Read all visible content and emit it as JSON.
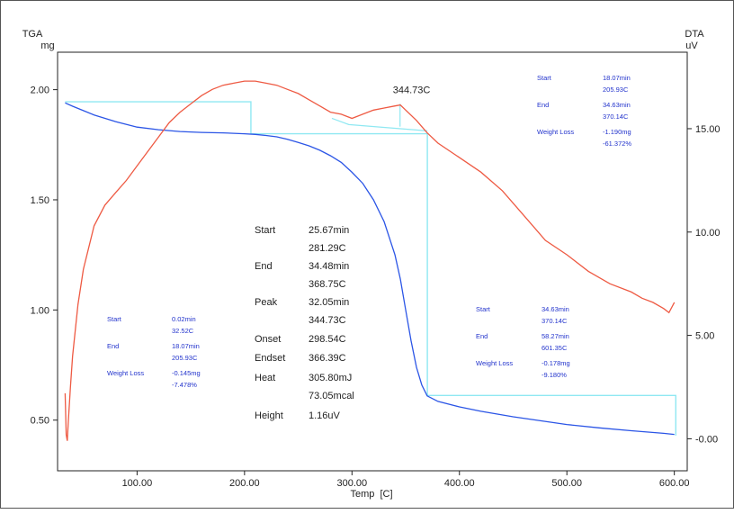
{
  "chart_data": {
    "type": "line",
    "xlabel": "Temp  [C]",
    "ylabel_left": "TGA",
    "ylabel_left_unit": "mg",
    "ylabel_right": "DTA",
    "ylabel_right_unit": "uV",
    "x_ticks": [
      "100.00",
      "200.00",
      "300.00",
      "400.00",
      "500.00",
      "600.00"
    ],
    "y_left_ticks": [
      "0.50",
      "1.00",
      "1.50",
      "2.00"
    ],
    "y_right_ticks": [
      "-0.00",
      "5.00",
      "10.00",
      "15.00"
    ],
    "xlim": [
      26,
      612
    ],
    "ylim_left": [
      0.27,
      2.17
    ],
    "ylim_right": [
      -1.55,
      18.7
    ],
    "grid": false,
    "colors": {
      "tga": "#2b55e6",
      "dta": "#ee5a43",
      "step": "#8fe8f2",
      "annotation": "#2233cc",
      "text": "#222222"
    },
    "series": [
      {
        "key": "tga",
        "axis": "left",
        "x": [
          33,
          40,
          50,
          60,
          80,
          100,
          120,
          140,
          160,
          180,
          200,
          210,
          220,
          230,
          240,
          250,
          260,
          270,
          280,
          290,
          300,
          310,
          320,
          330,
          340,
          345,
          350,
          355,
          360,
          365,
          370,
          380,
          400,
          420,
          450,
          500,
          530,
          560,
          590,
          600
        ],
        "y": [
          1.94,
          1.925,
          1.905,
          1.885,
          1.855,
          1.83,
          1.818,
          1.81,
          1.806,
          1.804,
          1.8,
          1.797,
          1.792,
          1.786,
          1.775,
          1.76,
          1.745,
          1.725,
          1.7,
          1.67,
          1.625,
          1.575,
          1.5,
          1.4,
          1.25,
          1.14,
          1.0,
          0.86,
          0.74,
          0.66,
          0.61,
          0.585,
          0.56,
          0.54,
          0.515,
          0.48,
          0.465,
          0.452,
          0.44,
          0.435
        ]
      },
      {
        "key": "dta",
        "axis": "right",
        "x": [
          33,
          34,
          35,
          36,
          38,
          40,
          45,
          50,
          60,
          70,
          80,
          90,
          100,
          110,
          120,
          130,
          140,
          150,
          160,
          170,
          180,
          190,
          200,
          210,
          220,
          230,
          240,
          250,
          260,
          270,
          280,
          290,
          300,
          310,
          320,
          330,
          340,
          345,
          350,
          360,
          370,
          380,
          400,
          420,
          440,
          460,
          480,
          500,
          520,
          540,
          560,
          570,
          580,
          590,
          595,
          600
        ],
        "y": [
          2.2,
          0.2,
          -0.1,
          0.8,
          2.5,
          4.0,
          6.5,
          8.2,
          10.3,
          11.3,
          11.9,
          12.5,
          13.2,
          13.9,
          14.6,
          15.3,
          15.8,
          16.2,
          16.6,
          16.9,
          17.1,
          17.2,
          17.3,
          17.3,
          17.2,
          17.1,
          16.9,
          16.7,
          16.4,
          16.1,
          15.8,
          15.7,
          15.5,
          15.7,
          15.9,
          16.0,
          16.1,
          16.15,
          15.9,
          15.4,
          14.8,
          14.3,
          13.6,
          12.9,
          12.0,
          10.8,
          9.6,
          8.9,
          8.1,
          7.5,
          7.1,
          6.8,
          6.6,
          6.3,
          6.1,
          6.6
        ]
      }
    ],
    "step_lines": {
      "axis": "left",
      "segments": [
        {
          "x": [
            33,
            205.93,
            205.93,
            370.14,
            370.14,
            601.35,
            601.35
          ],
          "y": [
            1.945,
            1.945,
            1.8,
            1.8,
            0.612,
            0.612,
            0.43
          ]
        }
      ],
      "dta_baseline": {
        "axis": "right",
        "x": [
          281.29,
          297,
          368.75,
          370.14
        ],
        "y": [
          15.5,
          15.2,
          14.9,
          14.9
        ]
      }
    },
    "peak_label": {
      "text": "344.73C",
      "x": 344.73,
      "y_right": 16.2
    },
    "annotation_left": {
      "rows": [
        {
          "label": "Start",
          "values": [
            "0.02min",
            "32.52C"
          ]
        },
        {
          "label": "End",
          "values": [
            "18.07min",
            "205.93C"
          ]
        },
        {
          "label": "Weight Loss",
          "values": [
            "-0.145mg",
            "-7.478%"
          ]
        }
      ]
    },
    "annotation_top_right": {
      "rows": [
        {
          "label": "Start",
          "values": [
            "18.07min",
            "205.93C"
          ]
        },
        {
          "label": "End",
          "values": [
            "34.63min",
            "370.14C"
          ]
        },
        {
          "label": "Weight Loss",
          "values": [
            "-1.190mg",
            "-61.372%"
          ]
        }
      ]
    },
    "annotation_bottom_right": {
      "rows": [
        {
          "label": "Start",
          "values": [
            "34.63min",
            "370.14C"
          ]
        },
        {
          "label": "End",
          "values": [
            "58.27min",
            "601.35C"
          ]
        },
        {
          "label": "Weight Loss",
          "values": [
            "-0.178mg",
            "-9.180%"
          ]
        }
      ]
    },
    "annotation_center": {
      "rows": [
        {
          "label": "Start",
          "values": [
            "25.67min",
            "281.29C"
          ]
        },
        {
          "label": "End",
          "values": [
            "34.48min",
            "368.75C"
          ]
        },
        {
          "label": "Peak",
          "values": [
            "32.05min",
            "344.73C"
          ]
        },
        {
          "label": "Onset",
          "values": [
            "298.54C"
          ]
        },
        {
          "label": "Endset",
          "values": [
            "366.39C"
          ]
        },
        {
          "label": "Heat",
          "values": [
            "305.80mJ",
            "73.05mcal"
          ]
        },
        {
          "label": "Height",
          "values": [
            "1.16uV"
          ]
        }
      ]
    }
  }
}
